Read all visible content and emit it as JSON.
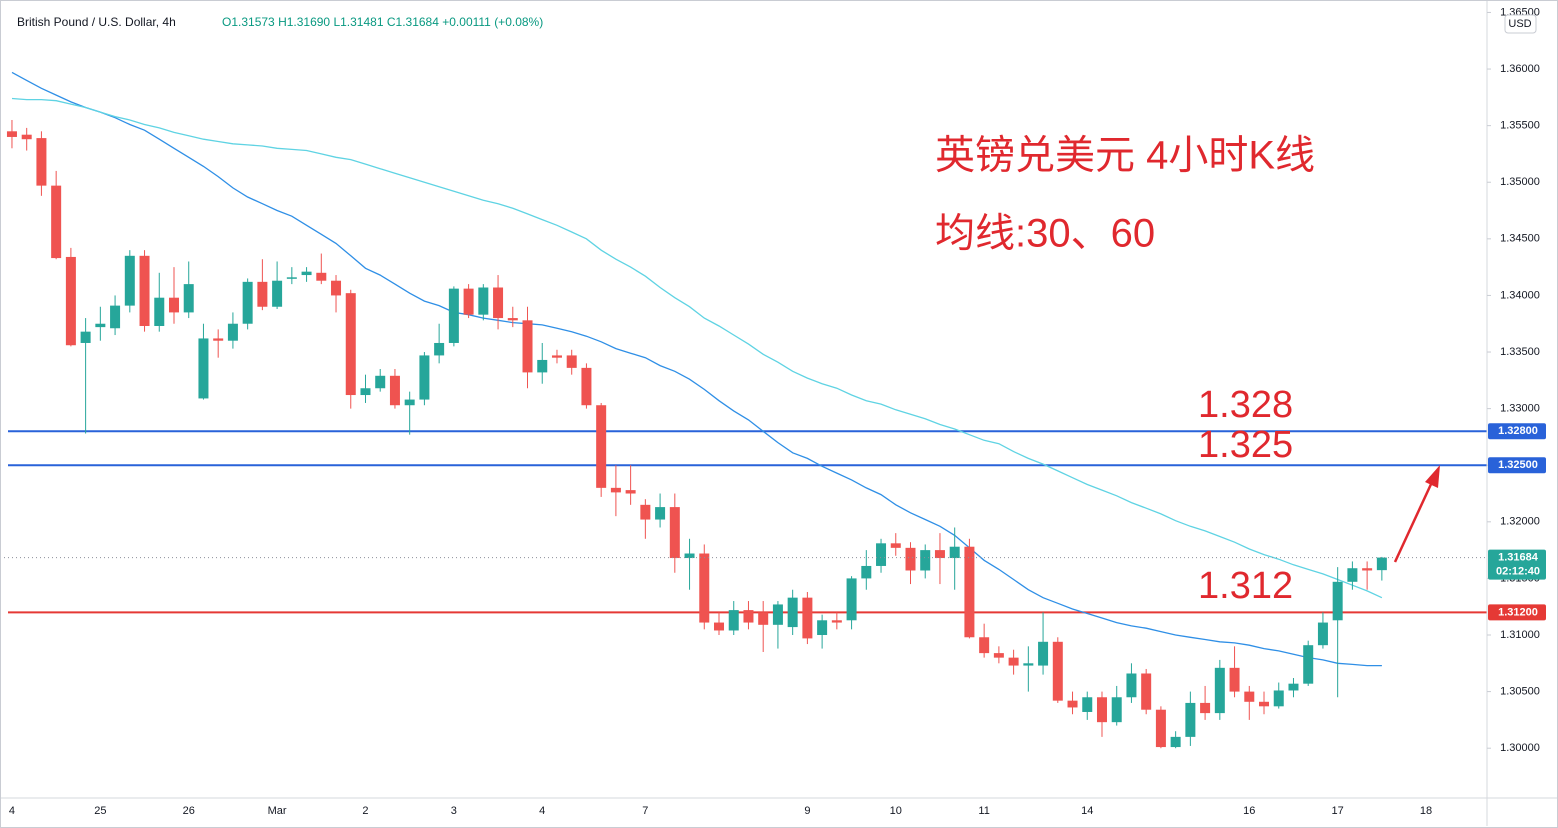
{
  "chart_data": {
    "type": "candlestick",
    "header": {
      "symbol": "British Pound / U.S. Dollar, 4h",
      "ohlc": [
        "O1.31573",
        "H1.31690",
        "L1.31481",
        "C1.31684"
      ],
      "change": "+0.00111 (+0.08%)",
      "currency": "USD"
    },
    "annotations": {
      "title": "英镑兑美元 4小时K线",
      "subtitle": "均线:30、60"
    },
    "categories": [
      "4",
      null,
      null,
      null,
      null,
      null,
      "25",
      null,
      null,
      null,
      null,
      null,
      "26",
      null,
      null,
      null,
      null,
      null,
      "Mar",
      null,
      null,
      null,
      null,
      null,
      "2",
      null,
      null,
      null,
      null,
      null,
      "3",
      null,
      null,
      null,
      null,
      null,
      "4",
      null,
      null,
      null,
      null,
      null,
      null,
      "7",
      null,
      null,
      null,
      null,
      null,
      null,
      null,
      null,
      null,
      null,
      "9",
      null,
      null,
      null,
      null,
      null,
      "10",
      null,
      null,
      null,
      null,
      null,
      "11",
      null,
      null,
      null,
      null,
      null,
      null,
      "14",
      null,
      null,
      null,
      null,
      null,
      null,
      null,
      null,
      null,
      null,
      "16",
      null,
      null,
      null,
      null,
      null,
      "17",
      null,
      null,
      null,
      null,
      null,
      "18",
      null,
      null,
      null
    ],
    "open": [
      1.3545,
      1.3542,
      1.3539,
      1.3497,
      1.3434,
      1.3358,
      1.3372,
      1.3371,
      1.3391,
      1.3435,
      1.3373,
      1.3398,
      1.3385,
      1.3309,
      1.3362,
      1.336,
      1.3375,
      1.3412,
      1.339,
      1.3415,
      1.3418,
      1.342,
      1.3413,
      1.3402,
      1.3312,
      1.3318,
      1.3329,
      1.3303,
      1.3308,
      1.3347,
      1.3358,
      1.3406,
      1.3383,
      1.3407,
      1.338,
      1.3378,
      1.3332,
      1.3347,
      1.3347,
      1.3336,
      1.3303,
      1.323,
      1.3228,
      1.3215,
      1.3202,
      1.3213,
      1.3168,
      1.3172,
      1.3111,
      1.3104,
      1.3122,
      1.312,
      1.3109,
      1.3107,
      1.3133,
      1.31,
      1.3113,
      1.3113,
      1.315,
      1.3161,
      1.3181,
      1.3177,
      1.3157,
      1.3175,
      1.3168,
      1.3178,
      1.3098,
      1.3084,
      1.308,
      1.3073,
      1.3073,
      1.3094,
      1.3042,
      1.3032,
      1.3045,
      1.3023,
      1.3045,
      1.3066,
      1.3034,
      1.3001,
      1.301,
      1.304,
      1.3031,
      1.3071,
      1.305,
      1.3041,
      1.3037,
      1.3051,
      1.3057,
      1.3091,
      1.3113,
      1.3147,
      1.3159,
      1.31573,
      null,
      null,
      null,
      null,
      null,
      null
    ],
    "high": [
      1.3555,
      1.3548,
      1.3545,
      1.351,
      1.3442,
      1.338,
      1.339,
      1.34,
      1.344,
      1.344,
      1.342,
      1.3425,
      1.343,
      1.3375,
      1.337,
      1.3385,
      1.3415,
      1.3432,
      1.343,
      1.3425,
      1.3425,
      1.3437,
      1.3418,
      1.3405,
      1.333,
      1.3335,
      1.3335,
      1.3315,
      1.335,
      1.3375,
      1.3408,
      1.341,
      1.341,
      1.3418,
      1.339,
      1.339,
      1.3358,
      1.3352,
      1.3352,
      1.334,
      1.3305,
      1.325,
      1.325,
      1.322,
      1.3225,
      1.3225,
      1.3185,
      1.318,
      1.312,
      1.313,
      1.313,
      1.313,
      1.313,
      1.314,
      1.3138,
      1.3118,
      1.312,
      1.3152,
      1.3175,
      1.3185,
      1.319,
      1.3182,
      1.318,
      1.319,
      1.3195,
      1.3185,
      1.311,
      1.309,
      1.3087,
      1.309,
      1.312,
      1.3098,
      1.305,
      1.305,
      1.305,
      1.3055,
      1.3075,
      1.307,
      1.3037,
      1.3015,
      1.305,
      1.3055,
      1.3078,
      1.309,
      1.3055,
      1.305,
      1.3058,
      1.3062,
      1.3095,
      1.312,
      1.316,
      1.3165,
      1.3165,
      1.3169,
      null,
      null,
      null,
      null,
      null,
      null
    ],
    "low": [
      1.353,
      1.3528,
      1.3488,
      1.3432,
      1.3355,
      1.3278,
      1.336,
      1.3365,
      1.3385,
      1.3368,
      1.3368,
      1.3375,
      1.338,
      1.3308,
      1.3345,
      1.3353,
      1.337,
      1.3387,
      1.3388,
      1.341,
      1.3412,
      1.341,
      1.3385,
      1.33,
      1.3305,
      1.3315,
      1.33,
      1.3277,
      1.3303,
      1.334,
      1.3355,
      1.338,
      1.3378,
      1.337,
      1.3372,
      1.3318,
      1.3322,
      1.334,
      1.333,
      1.33,
      1.3222,
      1.3205,
      1.3215,
      1.3185,
      1.3195,
      1.3155,
      1.314,
      1.3105,
      1.31,
      1.31,
      1.3105,
      1.3085,
      1.3088,
      1.31,
      1.3092,
      1.3088,
      1.3105,
      1.3105,
      1.314,
      1.3155,
      1.317,
      1.3145,
      1.315,
      1.3145,
      1.314,
      1.3097,
      1.308,
      1.3075,
      1.3065,
      1.305,
      1.3065,
      1.304,
      1.303,
      1.3025,
      1.301,
      1.302,
      1.304,
      1.303,
      1.3,
      1.3,
      1.3002,
      1.3025,
      1.3025,
      1.3045,
      1.3025,
      1.303,
      1.3035,
      1.3045,
      1.3055,
      1.3088,
      1.3045,
      1.314,
      1.314,
      1.31481,
      null,
      null,
      null,
      null,
      null,
      null
    ],
    "close": [
      1.354,
      1.3538,
      1.3497,
      1.3433,
      1.3356,
      1.3368,
      1.3375,
      1.3391,
      1.3435,
      1.3373,
      1.3398,
      1.3385,
      1.341,
      1.3362,
      1.336,
      1.3375,
      1.3412,
      1.339,
      1.3413,
      1.3416,
      1.3421,
      1.3413,
      1.34,
      1.3312,
      1.3318,
      1.3329,
      1.3303,
      1.3308,
      1.3347,
      1.3358,
      1.3406,
      1.3383,
      1.3407,
      1.338,
      1.3378,
      1.3332,
      1.3343,
      1.3345,
      1.3336,
      1.3303,
      1.323,
      1.3226,
      1.3225,
      1.3202,
      1.3213,
      1.3168,
      1.3172,
      1.3111,
      1.3104,
      1.3122,
      1.3111,
      1.3109,
      1.3127,
      1.3133,
      1.3097,
      1.3113,
      1.3111,
      1.315,
      1.3161,
      1.3181,
      1.3177,
      1.3157,
      1.3175,
      1.3168,
      1.3178,
      1.3098,
      1.3084,
      1.308,
      1.3073,
      1.3075,
      1.3094,
      1.3042,
      1.3036,
      1.3045,
      1.3023,
      1.3045,
      1.3066,
      1.3034,
      1.3001,
      1.301,
      1.304,
      1.3031,
      1.3071,
      1.305,
      1.3041,
      1.3037,
      1.3051,
      1.3057,
      1.3091,
      1.3111,
      1.3147,
      1.3159,
      1.3157,
      1.31684,
      null,
      null,
      null,
      null,
      null,
      null
    ],
    "up_color": "#26a69a",
    "down_color": "#ef5350",
    "ma_lines": [
      {
        "color": "#2f8fe6",
        "values": [
          1.3597,
          1.359,
          1.3583,
          1.3577,
          1.3571,
          1.3566,
          1.3562,
          1.3557,
          1.3551,
          1.3546,
          1.3538,
          1.353,
          1.3522,
          1.3514,
          1.3505,
          1.3495,
          1.3487,
          1.3481,
          1.3475,
          1.347,
          1.3462,
          1.3454,
          1.3446,
          1.3435,
          1.3424,
          1.3418,
          1.341,
          1.3402,
          1.3395,
          1.3391,
          1.3385,
          1.3383,
          1.338,
          1.3378,
          1.3376,
          1.3375,
          1.3374,
          1.3371,
          1.3368,
          1.3364,
          1.3359,
          1.3353,
          1.3349,
          1.3345,
          1.3338,
          1.3333,
          1.3326,
          1.3317,
          1.3307,
          1.3298,
          1.329,
          1.328,
          1.327,
          1.3261,
          1.3256,
          1.3249,
          1.3243,
          1.3237,
          1.323,
          1.3224,
          1.3215,
          1.3208,
          1.3202,
          1.3196,
          1.3188,
          1.3177,
          1.3166,
          1.3158,
          1.3149,
          1.314,
          1.3133,
          1.3128,
          1.3123,
          1.3119,
          1.3115,
          1.3111,
          1.3108,
          1.3106,
          1.3103,
          1.31,
          1.3098,
          1.3096,
          1.3094,
          1.3093,
          1.3091,
          1.3088,
          1.3086,
          1.3083,
          1.308,
          1.3078,
          1.3075,
          1.3074,
          1.3073,
          1.3073,
          null,
          null,
          null,
          null,
          null,
          null
        ]
      },
      {
        "color": "#5fd3e3",
        "values": [
          1.3574,
          1.3573,
          1.3573,
          1.3572,
          1.3569,
          1.3566,
          1.3562,
          1.3558,
          1.3555,
          1.3551,
          1.3548,
          1.3544,
          1.3541,
          1.3538,
          1.3536,
          1.3534,
          1.3533,
          1.3532,
          1.353,
          1.3529,
          1.3528,
          1.3525,
          1.3522,
          1.352,
          1.3516,
          1.3512,
          1.3508,
          1.3504,
          1.35,
          1.3496,
          1.3492,
          1.3488,
          1.3484,
          1.3481,
          1.3477,
          1.3472,
          1.3467,
          1.3462,
          1.3456,
          1.345,
          1.344,
          1.3432,
          1.3425,
          1.3417,
          1.3407,
          1.3398,
          1.339,
          1.338,
          1.3373,
          1.3365,
          1.3357,
          1.3348,
          1.3341,
          1.3333,
          1.3327,
          1.3322,
          1.3318,
          1.3312,
          1.3307,
          1.3304,
          1.3299,
          1.3295,
          1.3291,
          1.3286,
          1.3282,
          1.3277,
          1.3272,
          1.3269,
          1.3262,
          1.3256,
          1.3251,
          1.3245,
          1.3239,
          1.3233,
          1.3228,
          1.3223,
          1.3217,
          1.3212,
          1.3207,
          1.3201,
          1.3196,
          1.3192,
          1.3187,
          1.3182,
          1.3176,
          1.3171,
          1.3167,
          1.3162,
          1.3158,
          1.3154,
          1.3149,
          1.3144,
          1.3139,
          1.3133,
          null,
          null,
          null,
          null,
          null,
          null
        ]
      }
    ],
    "levels": [
      {
        "value": 1.328,
        "axis_label": "1.32800",
        "text": "1.328",
        "color": "#2962d9"
      },
      {
        "value": 1.325,
        "axis_label": "1.32500",
        "text": "1.325",
        "color": "#2962d9"
      },
      {
        "value": 1.312,
        "axis_label": "1.31200",
        "text": "1.312",
        "color": "#e53935"
      }
    ],
    "countdown": "02:12:40",
    "ylim": [
      1.2956,
      1.3661
    ],
    "yticks": [
      {
        "value": 1.3,
        "label": "1.30000"
      },
      {
        "value": 1.305,
        "label": "1.30500"
      },
      {
        "value": 1.31,
        "label": "1.31000"
      },
      {
        "value": 1.315,
        "label": "1.31500"
      },
      {
        "value": 1.32,
        "label": "1.32000"
      },
      {
        "value": 1.325,
        "label": "1.32500"
      },
      {
        "value": 1.33,
        "label": "1.33000"
      },
      {
        "value": 1.335,
        "label": "1.33500"
      },
      {
        "value": 1.34,
        "label": "1.34000"
      },
      {
        "value": 1.345,
        "label": "1.34500"
      },
      {
        "value": 1.35,
        "label": "1.35000"
      },
      {
        "value": 1.355,
        "label": "1.35500"
      },
      {
        "value": 1.36,
        "label": "1.36000"
      },
      {
        "value": 1.365,
        "label": "1.36500"
      }
    ],
    "grid": false
  }
}
